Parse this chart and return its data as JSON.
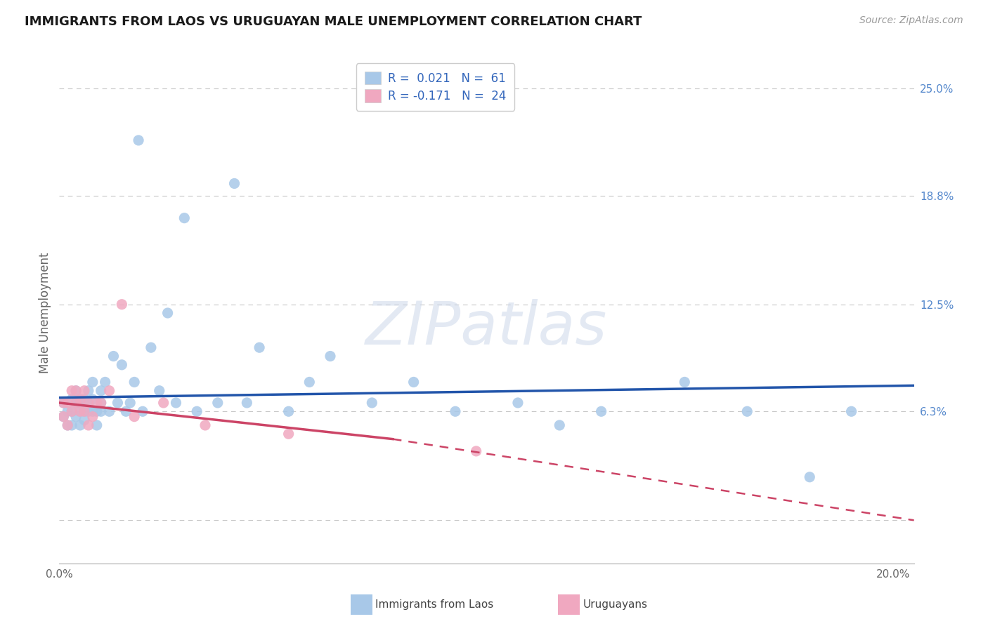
{
  "title": "IMMIGRANTS FROM LAOS VS URUGUAYAN MALE UNEMPLOYMENT CORRELATION CHART",
  "source": "Source: ZipAtlas.com",
  "ylabel": "Male Unemployment",
  "xlim": [
    0.0,
    0.205
  ],
  "ylim": [
    -0.025,
    0.265
  ],
  "background_color": "#ffffff",
  "grid_color": "#c8c8c8",
  "yticks": [
    0.0,
    0.063,
    0.125,
    0.188,
    0.25
  ],
  "ytick_labels": [
    "",
    "6.3%",
    "12.5%",
    "18.8%",
    "25.0%"
  ],
  "xtick_labels": [
    "0.0%",
    "20.0%"
  ],
  "xtick_vals": [
    0.0,
    0.2
  ],
  "laos_scatter_color": "#a8c8e8",
  "laos_line_color": "#2255aa",
  "uru_scatter_color": "#f0a8c0",
  "uru_line_color": "#cc4466",
  "laos_x": [
    0.001,
    0.001,
    0.002,
    0.002,
    0.003,
    0.003,
    0.003,
    0.004,
    0.004,
    0.004,
    0.005,
    0.005,
    0.005,
    0.005,
    0.006,
    0.006,
    0.006,
    0.007,
    0.007,
    0.007,
    0.008,
    0.008,
    0.008,
    0.009,
    0.009,
    0.01,
    0.01,
    0.01,
    0.011,
    0.012,
    0.013,
    0.014,
    0.015,
    0.016,
    0.017,
    0.018,
    0.019,
    0.02,
    0.022,
    0.024,
    0.026,
    0.028,
    0.03,
    0.033,
    0.038,
    0.042,
    0.048,
    0.055,
    0.065,
    0.075,
    0.085,
    0.095,
    0.11,
    0.12,
    0.13,
    0.15,
    0.165,
    0.18,
    0.19,
    0.06,
    0.045
  ],
  "laos_y": [
    0.06,
    0.068,
    0.063,
    0.055,
    0.07,
    0.063,
    0.055,
    0.068,
    0.06,
    0.075,
    0.063,
    0.07,
    0.055,
    0.068,
    0.063,
    0.07,
    0.058,
    0.075,
    0.063,
    0.068,
    0.063,
    0.07,
    0.08,
    0.055,
    0.063,
    0.068,
    0.063,
    0.075,
    0.08,
    0.063,
    0.095,
    0.068,
    0.09,
    0.063,
    0.068,
    0.08,
    0.22,
    0.063,
    0.1,
    0.075,
    0.12,
    0.068,
    0.175,
    0.063,
    0.068,
    0.195,
    0.1,
    0.063,
    0.095,
    0.068,
    0.08,
    0.063,
    0.068,
    0.055,
    0.063,
    0.08,
    0.063,
    0.025,
    0.063,
    0.08,
    0.068
  ],
  "uru_x": [
    0.001,
    0.001,
    0.002,
    0.002,
    0.003,
    0.003,
    0.004,
    0.004,
    0.005,
    0.005,
    0.006,
    0.006,
    0.007,
    0.007,
    0.008,
    0.009,
    0.01,
    0.012,
    0.015,
    0.018,
    0.025,
    0.035,
    0.055,
    0.1
  ],
  "uru_y": [
    0.06,
    0.068,
    0.055,
    0.068,
    0.063,
    0.075,
    0.068,
    0.075,
    0.063,
    0.07,
    0.063,
    0.075,
    0.055,
    0.068,
    0.06,
    0.068,
    0.068,
    0.075,
    0.125,
    0.06,
    0.068,
    0.055,
    0.05,
    0.04
  ],
  "laos_trend": [
    0.0,
    0.205,
    0.071,
    0.078
  ],
  "uru_solid": [
    0.0,
    0.08,
    0.068,
    0.047
  ],
  "uru_dashed": [
    0.08,
    0.205,
    0.047,
    0.0
  ]
}
